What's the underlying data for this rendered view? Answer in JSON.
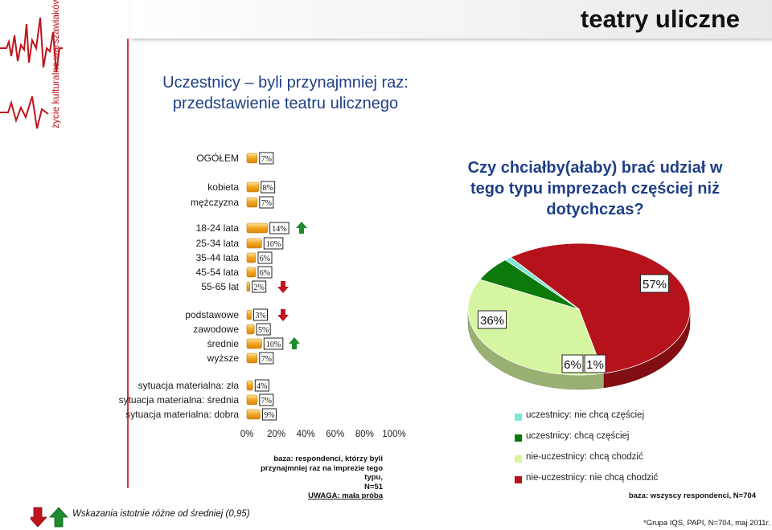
{
  "header": {
    "title": "teatry uliczne"
  },
  "logo": {
    "text": "życie kulturalne warszawiaków"
  },
  "subtitle": {
    "line1": "Uczestnicy – byli przynajmniej raz:",
    "line2": "przedstawienie teatru ulicznego"
  },
  "pie_question": {
    "line1": "Czy chciałby(ałaby) brać udział w",
    "line2": "tego typu imprezach częściej niż",
    "line3": "dotychczas?"
  },
  "notes": {
    "left_line1": "baza: respondenci, którzy byli",
    "left_line2": "przynajmniej raz na imprezie tego typu,",
    "left_line3": "N=51",
    "left_line4": "UWAGA: mała próba",
    "right": "baza: wszyscy respondenci, N=704",
    "footer": "*Grupa IQS, PAPI, N=704, maj 2011r.",
    "significance": "Wskazania istotnie różne od średniej (0,95)"
  },
  "colors": {
    "bar": "#f2a51e",
    "bar_light": "#fde29a",
    "up": "#1e8a2e",
    "down": "#c0141c",
    "pie_red": "#b5121b",
    "pie_lightgreen": "#d6f5a0",
    "pie_darkgreen": "#0b7a0b",
    "pie_cyan": "#7fe6d8",
    "title_blue": "#1f3f86"
  },
  "chart_data": [
    {
      "type": "bar",
      "orientation": "horizontal",
      "categories": [
        "OGÓŁEM",
        "kobieta",
        "mężczyzna",
        "18-24 lata",
        "25-34 lata",
        "35-44 lata",
        "45-54 lata",
        "55-65 lat",
        "podstawowe",
        "zawodowe",
        "średnie",
        "wyższe",
        "sytuacja materialna: zła",
        "sytuacja materialna: średnia",
        "sytuacja materialna: dobra"
      ],
      "values": [
        7,
        8,
        7,
        14,
        10,
        6,
        6,
        2,
        3,
        5,
        10,
        7,
        4,
        7,
        9
      ],
      "value_labels": [
        "7%",
        "8%",
        "7%",
        "14%",
        "10%",
        "6%",
        "6%",
        "2%",
        "3%",
        "5%",
        "10%",
        "7%",
        "4%",
        "7%",
        "9%"
      ],
      "significance": [
        "",
        "",
        "",
        "up",
        "",
        "",
        "",
        "down",
        "down",
        "",
        "up",
        "",
        "",
        "",
        ""
      ],
      "xlim": [
        0,
        100
      ],
      "xticks": [
        "0%",
        "20%",
        "40%",
        "60%",
        "80%",
        "100%"
      ]
    },
    {
      "type": "pie",
      "title": "Czy chciałby(ałaby) brać udział w tego typu imprezach częściej niż dotychczas?",
      "slices": [
        {
          "label": "nie-uczestnicy: nie chcą chodzić",
          "value": 57,
          "value_label": "57%",
          "color": "#b5121b"
        },
        {
          "label": "nie-uczestnicy: chcą chodzić",
          "value": 36,
          "value_label": "36%",
          "color": "#d6f5a0"
        },
        {
          "label": "uczestnicy: chcą częściej",
          "value": 6,
          "value_label": "6%",
          "color": "#0b7a0b"
        },
        {
          "label": "uczestnicy: nie chcą częściej",
          "value": 1,
          "value_label": "1%",
          "color": "#7fe6d8"
        }
      ],
      "legend": [
        {
          "label": "uczestnicy: nie chcą częściej",
          "color": "#7fe6d8"
        },
        {
          "label": "uczestnicy: chcą częściej",
          "color": "#0b7a0b"
        },
        {
          "label": "nie-uczestnicy: chcą chodzić",
          "color": "#d6f5a0"
        },
        {
          "label": "nie-uczestnicy: nie chcą chodzić",
          "color": "#b5121b"
        }
      ],
      "legend_position": "bottom-right"
    }
  ]
}
